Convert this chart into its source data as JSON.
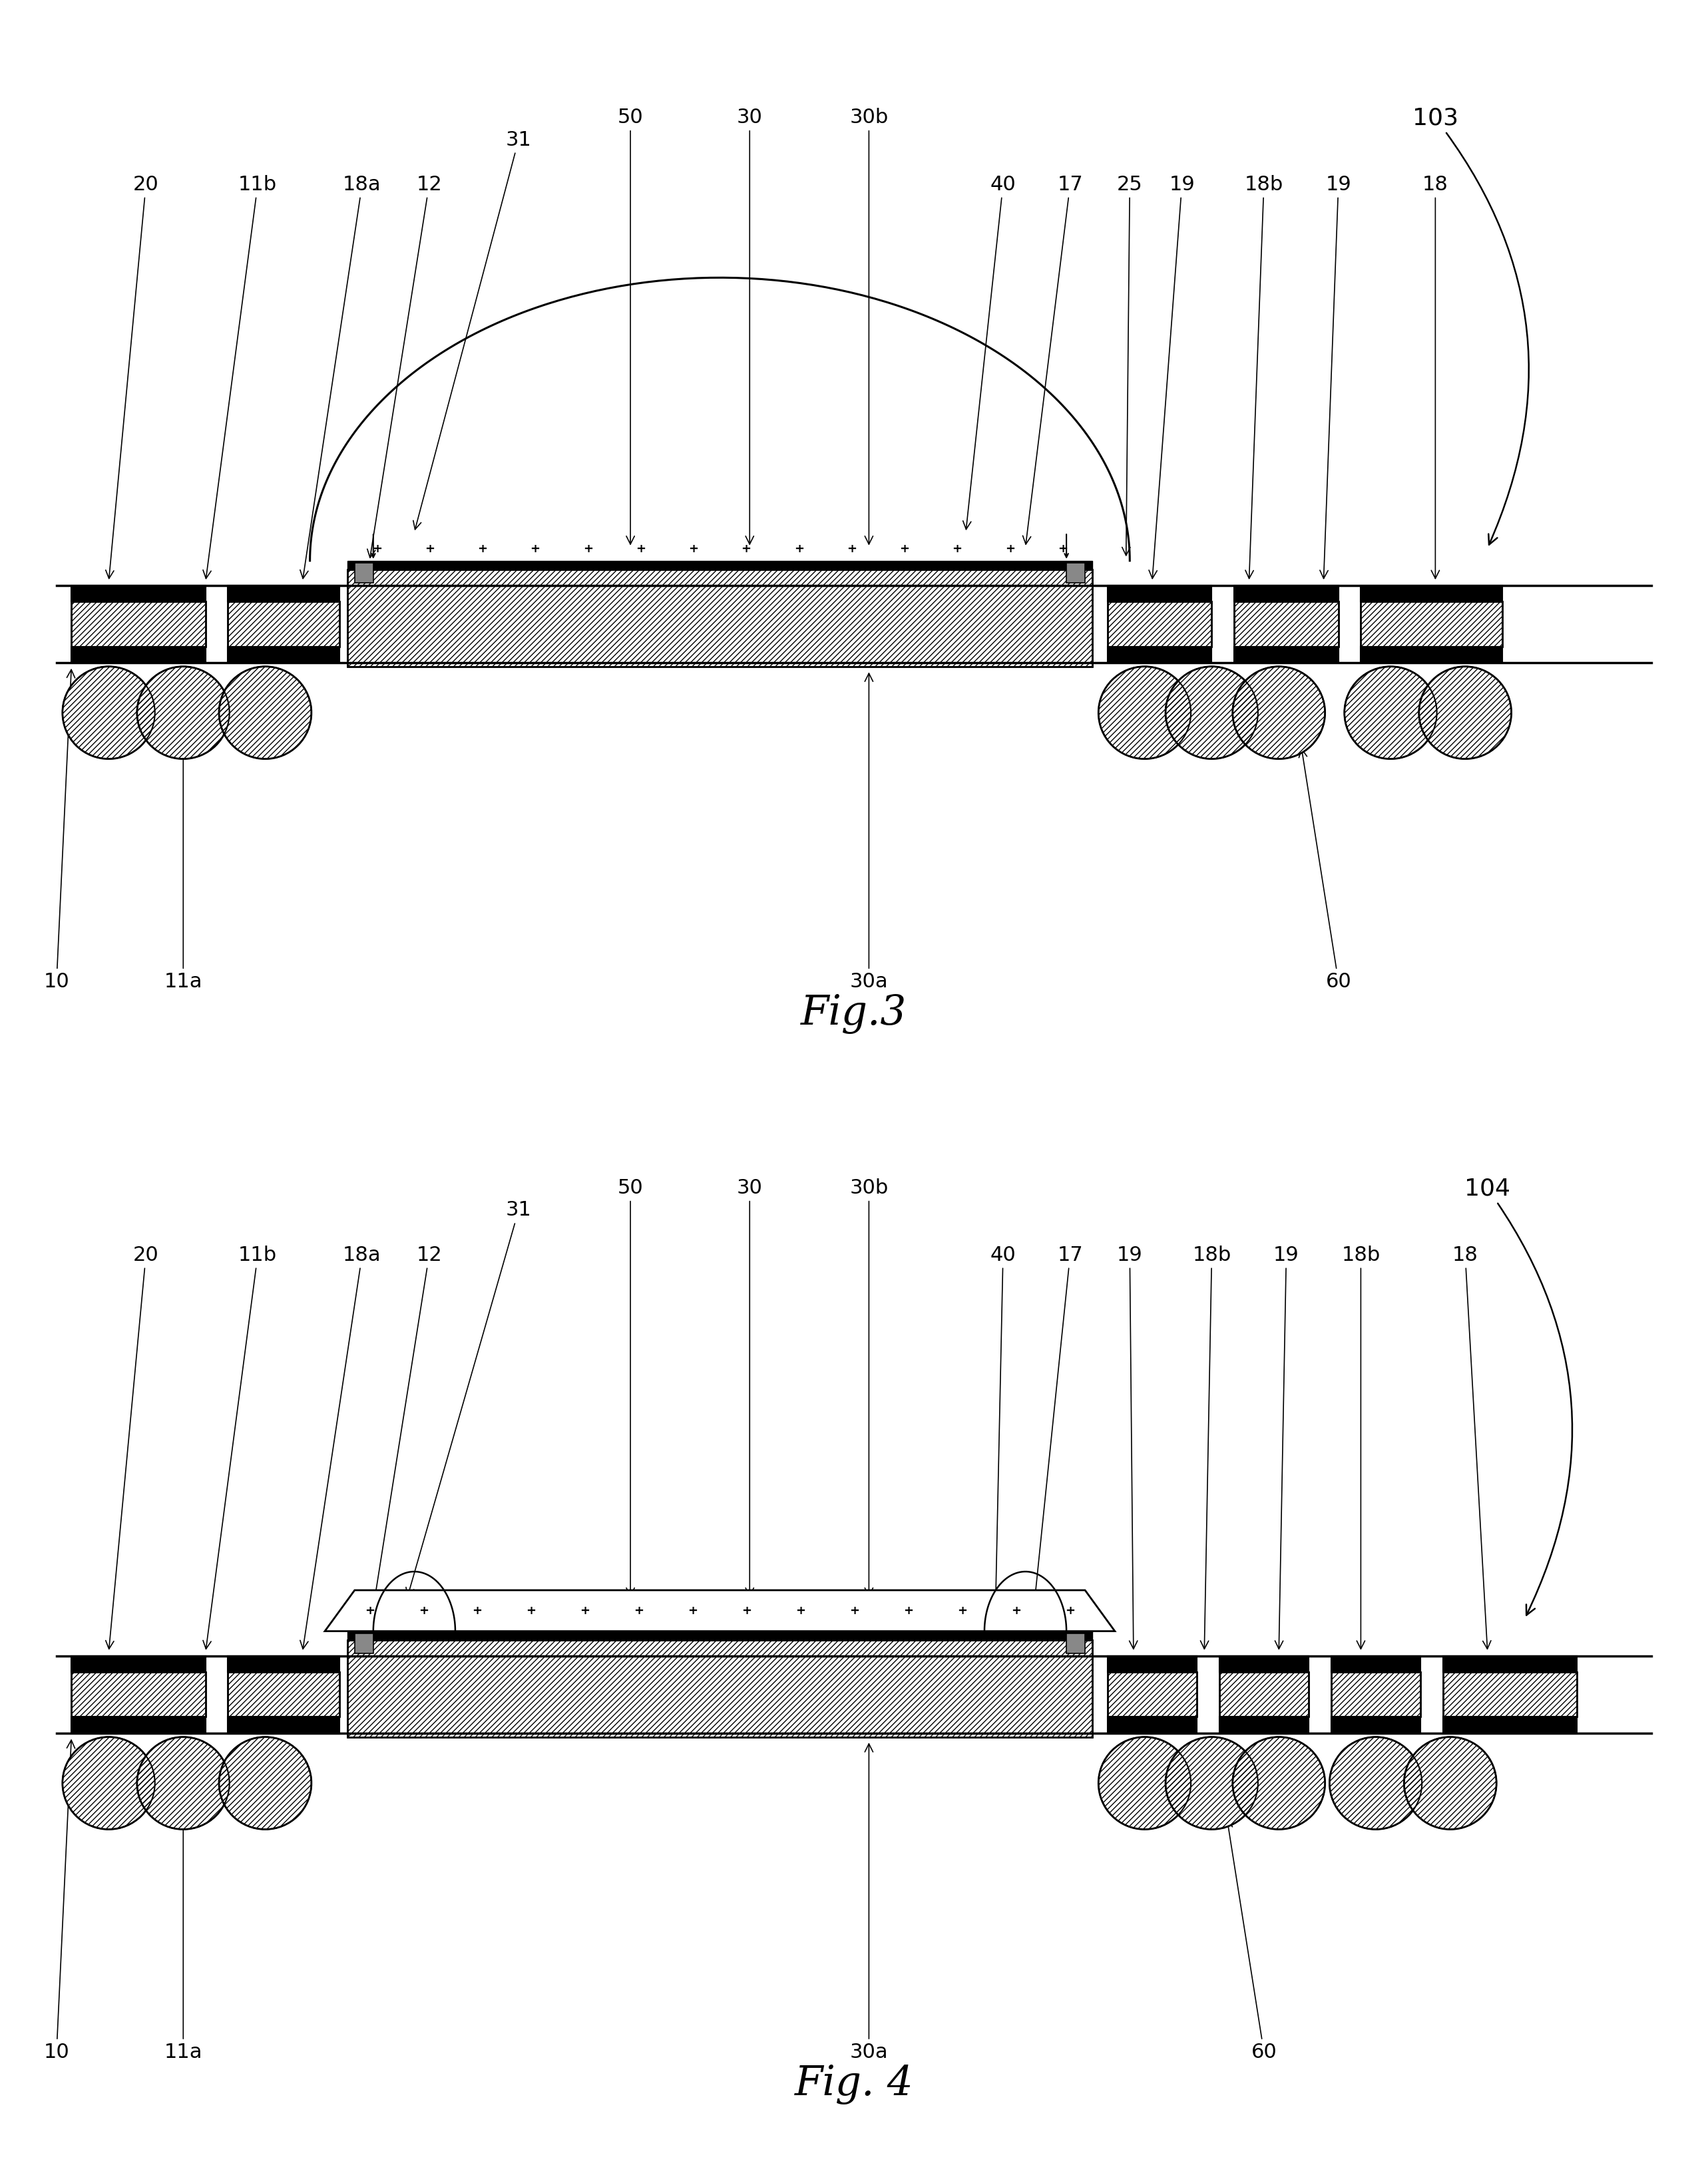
{
  "bg_color": "#ffffff",
  "fig_width": 25.66,
  "fig_height": 32.72,
  "fig3_title": "Fig.3",
  "fig4_title": "Fig. 4",
  "fig3_ref": "103",
  "fig4_ref": "104"
}
